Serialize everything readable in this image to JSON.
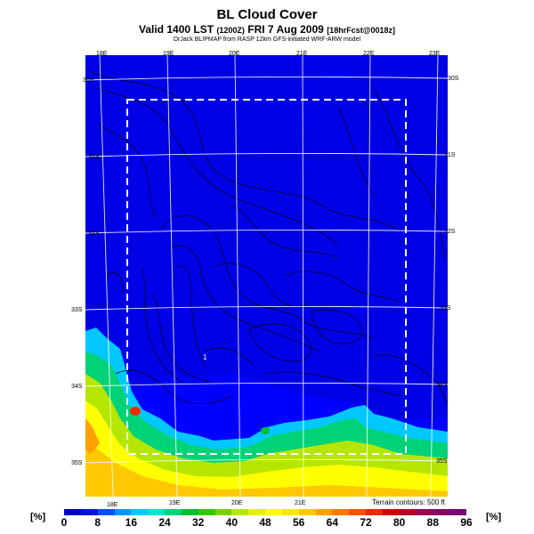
{
  "title": "BL Cloud Cover",
  "subtitle": {
    "main": "Valid 1400 LST",
    "tz": "(1200Z)",
    "date": "FRI 7 Aug 2009",
    "fcst": "[18hrFcst@0018z]"
  },
  "credit": "DrJack BLIPMAP from RASP 12km GFS-initiated WRF-ARW model",
  "terrain_note": "Terrain contours: 500 ft",
  "colorbar": {
    "unit_left": "[%]",
    "unit_right": "[%]",
    "ticks": [
      "0",
      "8",
      "16",
      "24",
      "32",
      "40",
      "48",
      "56",
      "64",
      "72",
      "80",
      "88",
      "96"
    ],
    "colors": [
      "#0000c8",
      "#0014e6",
      "#0050ff",
      "#0096ff",
      "#00c8ff",
      "#00e6c8",
      "#00d278",
      "#00be32",
      "#32c800",
      "#78d200",
      "#b4e600",
      "#e6f000",
      "#ffff00",
      "#ffe600",
      "#ffc800",
      "#ffa000",
      "#ff7800",
      "#ff5000",
      "#f02800",
      "#d20000",
      "#b40028",
      "#a00050",
      "#8c0064",
      "#780078"
    ]
  },
  "map": {
    "top_lon_labels": [
      "18E",
      "19E",
      "20E",
      "21E",
      "22E",
      "23E"
    ],
    "bottom_lon_labels": [
      "18E",
      "19E",
      "20E",
      "21E"
    ],
    "left_lat_labels": [
      "30S",
      "31S",
      "32S",
      "33S",
      "34S",
      "35S"
    ],
    "right_lat_labels": [
      "30S",
      "31S",
      "32S",
      "33S",
      "34S",
      "35S"
    ],
    "ocean_color": "#0000ff",
    "point_label": "1"
  }
}
